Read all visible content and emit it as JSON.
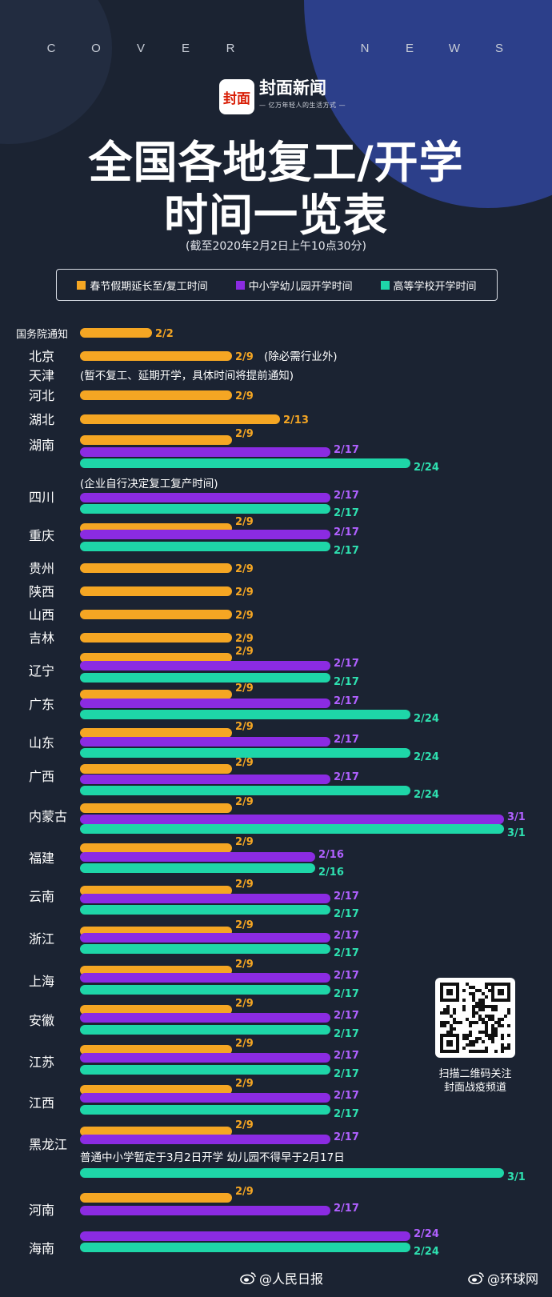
{
  "header": {
    "cover_letters": [
      "C",
      "O",
      "V",
      "E",
      "R",
      "",
      "",
      "N",
      "E",
      "W",
      "S"
    ],
    "logo_icon_text": "封面",
    "logo_name": "封面新闻",
    "logo_slogan": "— 亿万年轻人的生活方式 —",
    "title_line1": "全国各地复工/开学",
    "title_line2": "时间一览表",
    "subtitle": "(截至2020年2月2日上午10点30分)"
  },
  "legend": [
    {
      "label": "春节假期延长至/复工时间",
      "color": "#f5a623"
    },
    {
      "label": "中小学幼儿园开学时间",
      "color": "#8b2be2"
    },
    {
      "label": "高等学校开学时间",
      "color": "#1ed6a8"
    }
  ],
  "colors": {
    "work": "#f5a623",
    "school": "#8b2be2",
    "college": "#1ed6a8",
    "work_label": "#f5a623",
    "school_label": "#b060ff",
    "college_label": "#2ee0b0",
    "background": "#1b2332"
  },
  "chart_data": {
    "type": "bar",
    "orientation": "horizontal",
    "grouped": true,
    "series_names": [
      "春节假期延长至/复工时间",
      "中小学幼儿园开学时间",
      "高等学校开学时间"
    ],
    "rows": [
      {
        "region": "国务院通知",
        "work": "2/2"
      },
      {
        "region": "北京",
        "work": "2/9",
        "note": "(除必需行业外)"
      },
      {
        "region": "天津",
        "note": "(暂不复工、延期开学，具体时间将提前通知)"
      },
      {
        "region": "河北",
        "work": "2/9"
      },
      {
        "region": "湖北",
        "work": "2/13"
      },
      {
        "region": "湖南",
        "work": "2/9",
        "school": "2/17",
        "college": "2/24"
      },
      {
        "region": "四川",
        "note": "(企业自行决定复工复产时间)",
        "school": "2/17",
        "college": "2/17"
      },
      {
        "region": "重庆",
        "work": "2/9",
        "school": "2/17",
        "college": "2/17"
      },
      {
        "region": "贵州",
        "work": "2/9"
      },
      {
        "region": "陕西",
        "work": "2/9"
      },
      {
        "region": "山西",
        "work": "2/9"
      },
      {
        "region": "吉林",
        "work": "2/9"
      },
      {
        "region": "辽宁",
        "work": "2/9",
        "school": "2/17",
        "college": "2/17"
      },
      {
        "region": "广东",
        "work": "2/9",
        "school": "2/17",
        "college": "2/24"
      },
      {
        "region": "山东",
        "work": "2/9",
        "school": "2/17",
        "college": "2/24"
      },
      {
        "region": "广西",
        "work": "2/9",
        "school": "2/17",
        "college": "2/24"
      },
      {
        "region": "内蒙古",
        "work": "2/9",
        "school": "3/1",
        "college": "3/1"
      },
      {
        "region": "福建",
        "work": "2/9",
        "school": "2/16",
        "college": "2/16"
      },
      {
        "region": "云南",
        "work": "2/9",
        "school": "2/17",
        "college": "2/17"
      },
      {
        "region": "浙江",
        "work": "2/9",
        "school": "2/17",
        "college": "2/17"
      },
      {
        "region": "上海",
        "work": "2/9",
        "school": "2/17",
        "college": "2/17"
      },
      {
        "region": "安徽",
        "work": "2/9",
        "school": "2/17",
        "college": "2/17"
      },
      {
        "region": "江苏",
        "work": "2/9",
        "school": "2/17",
        "college": "2/17"
      },
      {
        "region": "江西",
        "work": "2/9",
        "school": "2/17",
        "college": "2/17"
      },
      {
        "region": "黑龙江",
        "work": "2/9",
        "school": "2/17",
        "note": "普通中小学暂定于3月2日开学 幼儿园不得早于2月17日",
        "college": "3/1"
      },
      {
        "region": "河南",
        "work": "2/9",
        "school": "2/17"
      },
      {
        "region": "海南",
        "school": "2/24",
        "college": "2/24"
      }
    ]
  },
  "qr": {
    "caption_line1": "扫描二维码关注",
    "caption_line2": "封面战疫频道"
  },
  "watermarks": [
    {
      "text": "@人民日报"
    },
    {
      "text": "@环球网"
    }
  ]
}
